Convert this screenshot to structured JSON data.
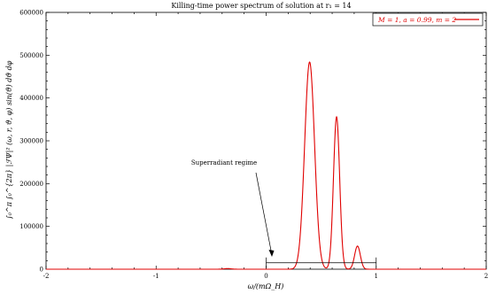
{
  "chart_data": {
    "type": "line",
    "title": "Killing-time power spectrum of solution at r₁ = 14",
    "xlabel": "ω/(mΩ_H)",
    "ylabel": "∫₀^π ∫₀^{2π} |ℱΨ|² (ω, r, ϑ, φ) sin(ϑ) dϑ dφ",
    "xlim": [
      -2,
      2
    ],
    "ylim": [
      0,
      600000
    ],
    "xticks": [
      "-2",
      "-1",
      "0",
      "1",
      "2"
    ],
    "yticks": [
      "0",
      "100000",
      "200000",
      "300000",
      "400000",
      "500000",
      "600000"
    ],
    "legend_position": "top-right",
    "series": [
      {
        "name": "M = 1, a = 0.99, m = 2",
        "color": "#e00000",
        "peaks": [
          {
            "x": -0.35,
            "y": 1500,
            "width": 0.03
          },
          {
            "x": 0.395,
            "y": 484000,
            "width": 0.045
          },
          {
            "x": 0.64,
            "y": 356000,
            "width": 0.028
          },
          {
            "x": 0.83,
            "y": 54000,
            "width": 0.026
          }
        ]
      }
    ],
    "annotation": {
      "text": "Superradiant regime",
      "region": [
        0,
        1
      ],
      "level": 15000
    }
  }
}
